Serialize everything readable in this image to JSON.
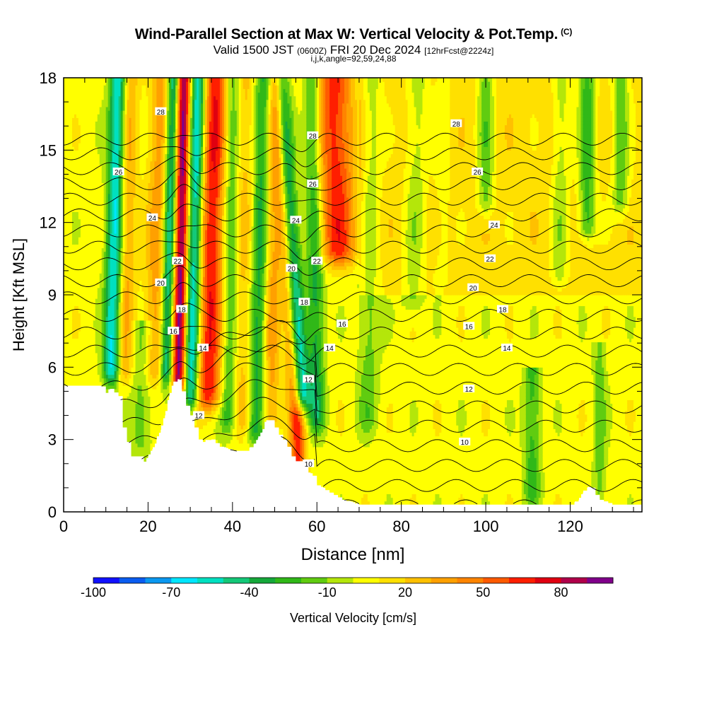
{
  "title": {
    "main": "Wind-Parallel Section at Max W: Vertical Velocity & Pot.Temp.",
    "copyright": "(C)",
    "valid_prefix": "Valid 1500 JST",
    "valid_utc": "(0600Z)",
    "valid_date": "FRI 20 Dec 2024",
    "forecast": "[12hrFcst@2224z]",
    "params": "i,j,k,angle=92,59,24,88"
  },
  "chart_data": {
    "type": "heatmap",
    "title": "Wind-Parallel Section at Max W: Vertical Velocity & Pot.Temp.",
    "xlabel": "Distance [nm]",
    "ylabel": "Height [Kft MSL]",
    "xlim": [
      0,
      137
    ],
    "ylim": [
      0,
      18
    ],
    "x_ticks": [
      0,
      20,
      40,
      60,
      80,
      100,
      120
    ],
    "y_ticks": [
      0,
      3,
      6,
      9,
      12,
      15,
      18
    ],
    "grid": false,
    "colorbar": {
      "label": "Vertical Velocity [cm/s]",
      "ticks": [
        -100,
        -70,
        -40,
        -10,
        20,
        50,
        80
      ],
      "levels": [
        -100,
        -90,
        -80,
        -70,
        -60,
        -50,
        -40,
        -30,
        -20,
        -10,
        0,
        10,
        20,
        30,
        40,
        50,
        60,
        70,
        80,
        90,
        100
      ],
      "colors": [
        "#1010ff",
        "#0a5cf0",
        "#0a98f0",
        "#00e6ff",
        "#00e0c0",
        "#14c878",
        "#15a83a",
        "#30b818",
        "#60cc10",
        "#b4e60a",
        "#ffff00",
        "#ffe000",
        "#ffc000",
        "#ffa000",
        "#ff8400",
        "#ff5a00",
        "#ff1e00",
        "#e00010",
        "#b0004a",
        "#80008a"
      ]
    },
    "terrain_profile": {
      "x": [
        0,
        3,
        6,
        9,
        10,
        11,
        13,
        14,
        16,
        18,
        19,
        20,
        21,
        22,
        23,
        24,
        25,
        26,
        27,
        28,
        29,
        30,
        31,
        32,
        33,
        35,
        37,
        39,
        41,
        43,
        45,
        47,
        48,
        49,
        50,
        51,
        52,
        53,
        54,
        55,
        56,
        57,
        58,
        59,
        60,
        62,
        64,
        66,
        68,
        70,
        75,
        80,
        90,
        100,
        110,
        120,
        122,
        123,
        124,
        125,
        126,
        127,
        130,
        137
      ],
      "height_kft": [
        5.2,
        5.2,
        5.2,
        5.2,
        4.9,
        5.1,
        4.8,
        3.5,
        2.3,
        2.3,
        2.0,
        2.3,
        2.6,
        3.0,
        3.4,
        4.0,
        4.8,
        5.4,
        5.5,
        5.0,
        4.4,
        4.0,
        3.5,
        3.0,
        2.9,
        3.0,
        2.7,
        2.6,
        2.5,
        2.5,
        2.8,
        3.3,
        3.8,
        3.8,
        3.5,
        3.2,
        3.0,
        2.7,
        2.3,
        2.1,
        2.1,
        2.0,
        1.6,
        1.5,
        1.1,
        0.9,
        0.7,
        0.5,
        0.4,
        0.3,
        0.3,
        0.3,
        0.3,
        0.3,
        0.3,
        0.3,
        0.5,
        0.8,
        1.0,
        1.0,
        0.7,
        0.5,
        0.3,
        0.3
      ]
    },
    "vertical_velocity_features": [
      {
        "x": 11,
        "width_nm": 2.0,
        "w_cms": -70,
        "base_kft": 6,
        "top_kft": 18,
        "lean_nm": 2.0
      },
      {
        "x": 14,
        "width_nm": 2.2,
        "w_cms": 30,
        "base_kft": 6,
        "top_kft": 18,
        "lean_nm": 1.5
      },
      {
        "x": 18.5,
        "width_nm": 2.5,
        "w_cms": -20,
        "base_kft": 3,
        "top_kft": 7,
        "lean_nm": 0
      },
      {
        "x": 21,
        "width_nm": 2.5,
        "w_cms": 30,
        "base_kft": 6,
        "top_kft": 18,
        "lean_nm": 2.0
      },
      {
        "x": 24,
        "width_nm": 1.5,
        "w_cms": -60,
        "base_kft": 6,
        "top_kft": 18,
        "lean_nm": 2.0
      },
      {
        "x": 27,
        "width_nm": 1.6,
        "w_cms": 90,
        "base_kft": 5.5,
        "top_kft": 18,
        "lean_nm": 1.5
      },
      {
        "x": 30,
        "width_nm": 1.8,
        "w_cms": -70,
        "base_kft": 5,
        "top_kft": 18,
        "lean_nm": 2.0
      },
      {
        "x": 34,
        "width_nm": 3.0,
        "w_cms": 65,
        "base_kft": 5,
        "top_kft": 18,
        "lean_nm": 2.0
      },
      {
        "x": 39,
        "width_nm": 2.0,
        "w_cms": -30,
        "base_kft": 4,
        "top_kft": 18,
        "lean_nm": 1.0
      },
      {
        "x": 42,
        "width_nm": 2.2,
        "w_cms": 20,
        "base_kft": 4,
        "top_kft": 18,
        "lean_nm": 1.0
      },
      {
        "x": 45.5,
        "width_nm": 2.0,
        "w_cms": -40,
        "base_kft": 3.5,
        "top_kft": 18,
        "lean_nm": 2.0
      },
      {
        "x": 49,
        "width_nm": 2.0,
        "w_cms": 30,
        "base_kft": 4,
        "top_kft": 18,
        "lean_nm": 1.0
      },
      {
        "x": 57,
        "width_nm": 2.0,
        "w_cms": -80,
        "base_kft": 5,
        "top_kft": 18,
        "lean_nm": -6.0
      },
      {
        "x": 55.5,
        "width_nm": 1.8,
        "w_cms": 60,
        "base_kft": 2,
        "top_kft": 18,
        "lean_nm": -5.0
      },
      {
        "x": 60,
        "width_nm": 2.0,
        "w_cms": -40,
        "base_kft": 4,
        "top_kft": 18,
        "lean_nm": -1.0
      },
      {
        "x": 66,
        "width_nm": 4.5,
        "w_cms": 60,
        "base_kft": 11,
        "top_kft": 18,
        "lean_nm": -2.0
      },
      {
        "x": 72,
        "width_nm": 2.5,
        "w_cms": -20,
        "base_kft": 4,
        "top_kft": 18,
        "lean_nm": 1.0
      },
      {
        "x": 82,
        "width_nm": 2.5,
        "w_cms": -20,
        "base_kft": 9,
        "top_kft": 18,
        "lean_nm": 2.0
      },
      {
        "x": 89,
        "width_nm": 2.0,
        "w_cms": -10,
        "base_kft": 10,
        "top_kft": 18,
        "lean_nm": 1.0
      },
      {
        "x": 100,
        "width_nm": 2.0,
        "w_cms": -30,
        "base_kft": 13,
        "top_kft": 18,
        "lean_nm": 0.0
      },
      {
        "x": 111,
        "width_nm": 2.0,
        "w_cms": -30,
        "base_kft": 1,
        "top_kft": 5,
        "lean_nm": 0.0
      },
      {
        "x": 117,
        "width_nm": 2.0,
        "w_cms": -20,
        "base_kft": 10,
        "top_kft": 18,
        "lean_nm": 1.0
      },
      {
        "x": 124,
        "width_nm": 2.0,
        "w_cms": -40,
        "base_kft": 12,
        "top_kft": 18,
        "lean_nm": 0.0
      },
      {
        "x": 127,
        "width_nm": 1.5,
        "w_cms": -20,
        "base_kft": 1,
        "top_kft": 6,
        "lean_nm": 0.0
      },
      {
        "x": 132,
        "width_nm": 2.0,
        "w_cms": -30,
        "base_kft": 13,
        "top_kft": 18,
        "lean_nm": 0.0
      }
    ],
    "theta_contours": {
      "interval": 1,
      "labeled_levels": [
        {
          "value": 10,
          "label_positions": [
            [
              58,
              2.0
            ],
            [
              95,
              2.9
            ]
          ]
        },
        {
          "value": 12,
          "label_positions": [
            [
              32,
              4.0
            ],
            [
              58,
              5.5
            ],
            [
              96,
              5.1
            ]
          ]
        },
        {
          "value": 14,
          "label_positions": [
            [
              33,
              6.8
            ],
            [
              63,
              6.8
            ],
            [
              105,
              6.8
            ]
          ]
        },
        {
          "value": 16,
          "label_positions": [
            [
              26,
              7.5
            ],
            [
              66,
              7.8
            ],
            [
              96,
              7.7
            ]
          ]
        },
        {
          "value": 18,
          "label_positions": [
            [
              28,
              8.4
            ],
            [
              57,
              8.7
            ],
            [
              104,
              8.4
            ]
          ]
        },
        {
          "value": 20,
          "label_positions": [
            [
              23,
              9.5
            ],
            [
              54,
              10.1
            ],
            [
              97,
              9.3
            ]
          ]
        },
        {
          "value": 22,
          "label_positions": [
            [
              27,
              10.4
            ],
            [
              60,
              10.4
            ],
            [
              101,
              10.5
            ]
          ]
        },
        {
          "value": 24,
          "label_positions": [
            [
              21,
              12.2
            ],
            [
              55,
              12.1
            ],
            [
              102,
              11.9
            ]
          ]
        },
        {
          "value": 26,
          "label_positions": [
            [
              13,
              14.1
            ],
            [
              59,
              13.6
            ],
            [
              98,
              14.1
            ]
          ]
        },
        {
          "value": 28,
          "label_positions": [
            [
              23,
              16.6
            ],
            [
              59,
              15.6
            ],
            [
              93,
              16.1
            ]
          ]
        }
      ]
    }
  }
}
